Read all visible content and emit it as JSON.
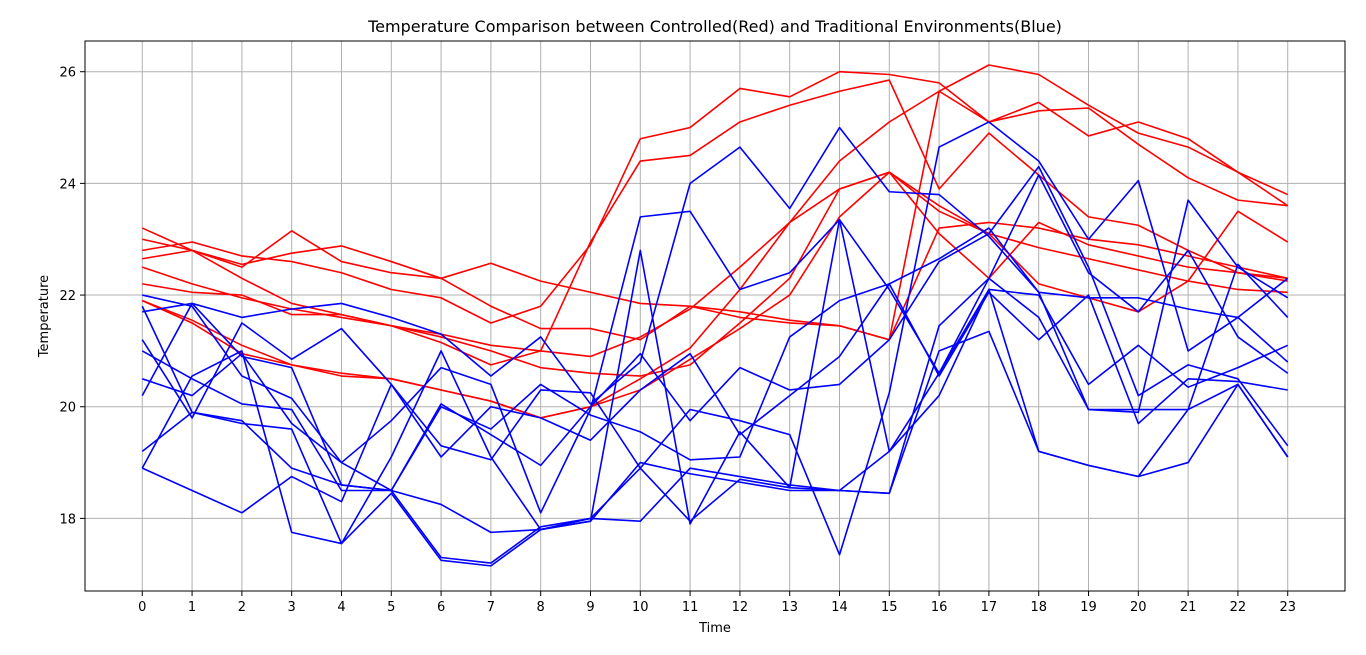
{
  "chart_data": {
    "type": "line",
    "title": "Temperature Comparison between Controlled(Red) and Traditional Environments(Blue)",
    "xlabel": "Time",
    "ylabel": "Temperature",
    "x": [
      0,
      1,
      2,
      3,
      4,
      5,
      6,
      7,
      8,
      9,
      10,
      11,
      12,
      13,
      14,
      15,
      16,
      17,
      18,
      19,
      20,
      21,
      22,
      23
    ],
    "xlim": [
      -1.15,
      24.15
    ],
    "ylim": [
      16.7,
      26.55
    ],
    "yticks": [
      18,
      20,
      22,
      24,
      26
    ],
    "grid": true,
    "colors": {
      "controlled": "#ff0000",
      "traditional": "#0000ff",
      "grid": "#b0b0b0"
    },
    "series": [
      {
        "group": "controlled",
        "values": [
          23.2,
          22.8,
          22.5,
          23.15,
          22.6,
          22.4,
          22.3,
          21.8,
          21.4,
          21.4,
          21.2,
          21.8,
          21.6,
          21.5,
          21.45,
          21.2,
          23.2,
          23.3,
          23.2,
          23.0,
          22.9,
          22.7,
          22.5,
          22.3
        ]
      },
      {
        "group": "controlled",
        "values": [
          22.65,
          22.8,
          22.55,
          22.75,
          22.88,
          22.6,
          22.3,
          22.57,
          22.25,
          22.05,
          21.85,
          21.8,
          21.7,
          21.55,
          21.45,
          21.2,
          25.65,
          25.1,
          25.3,
          25.35,
          24.7,
          24.1,
          23.7,
          23.6
        ]
      },
      {
        "group": "controlled",
        "values": [
          22.8,
          22.95,
          22.7,
          22.6,
          22.4,
          22.1,
          21.95,
          21.5,
          21.8,
          22.9,
          24.8,
          25.0,
          25.7,
          25.55,
          26.0,
          25.95,
          25.8,
          25.1,
          25.45,
          24.85,
          25.1,
          24.8,
          24.2,
          23.8
        ]
      },
      {
        "group": "controlled",
        "values": [
          23.0,
          22.8,
          22.3,
          21.85,
          21.65,
          21.45,
          21.3,
          21.1,
          21.0,
          20.9,
          21.25,
          21.75,
          22.5,
          23.3,
          24.4,
          25.1,
          25.65,
          26.12,
          25.95,
          25.4,
          24.9,
          24.65,
          24.2,
          23.6
        ]
      },
      {
        "group": "controlled",
        "values": [
          22.5,
          22.2,
          21.95,
          21.75,
          21.6,
          21.45,
          21.25,
          21.0,
          20.7,
          20.6,
          20.55,
          20.75,
          21.5,
          22.3,
          23.9,
          24.2,
          23.5,
          23.1,
          22.85,
          22.65,
          22.45,
          22.25,
          22.1,
          22.05
        ]
      },
      {
        "group": "controlled",
        "values": [
          22.2,
          22.05,
          22.0,
          21.65,
          21.65,
          21.45,
          21.15,
          20.75,
          21.0,
          22.95,
          24.4,
          24.5,
          25.1,
          25.4,
          25.65,
          25.85,
          23.9,
          24.9,
          24.15,
          23.4,
          23.25,
          22.8,
          22.4,
          22.3
        ]
      },
      {
        "group": "controlled",
        "values": [
          21.9,
          21.55,
          21.1,
          20.75,
          20.6,
          20.5,
          20.3,
          20.1,
          19.8,
          20.0,
          20.3,
          20.85,
          21.4,
          22.0,
          23.4,
          24.2,
          23.1,
          22.3,
          23.3,
          22.9,
          22.7,
          22.5,
          22.4,
          22.25
        ]
      },
      {
        "group": "controlled",
        "values": [
          21.9,
          21.5,
          20.95,
          20.75,
          20.55,
          20.5,
          20.3,
          20.1,
          19.8,
          20.0,
          20.5,
          21.05,
          22.1,
          23.3,
          23.9,
          24.2,
          23.6,
          23.1,
          22.2,
          21.95,
          21.7,
          22.25,
          23.5,
          22.95
        ]
      },
      {
        "group": "traditional",
        "values": [
          21.7,
          21.85,
          21.6,
          21.75,
          21.85,
          21.6,
          21.3,
          20.55,
          21.25,
          20.05,
          20.8,
          24.0,
          24.65,
          23.55,
          25.0,
          23.85,
          23.8,
          23.05,
          22.05,
          21.95,
          21.95,
          21.75,
          21.6,
          20.8
        ]
      },
      {
        "group": "traditional",
        "values": [
          22.0,
          21.8,
          20.55,
          20.15,
          19.0,
          19.75,
          20.7,
          20.4,
          18.1,
          19.95,
          23.4,
          23.5,
          22.1,
          22.4,
          23.35,
          22.1,
          20.6,
          22.3,
          24.15,
          22.4,
          21.7,
          22.8,
          21.25,
          20.6
        ]
      },
      {
        "group": "traditional",
        "values": [
          20.2,
          21.85,
          20.9,
          20.7,
          18.6,
          18.5,
          20.05,
          19.5,
          18.95,
          20.0,
          20.95,
          19.75,
          20.7,
          20.3,
          20.4,
          21.2,
          22.6,
          23.1,
          24.3,
          22.5,
          20.2,
          20.75,
          20.5,
          19.3
        ]
      },
      {
        "group": "traditional",
        "values": [
          21.2,
          19.8,
          21.5,
          20.85,
          21.4,
          20.4,
          19.1,
          20.0,
          19.8,
          19.4,
          20.3,
          20.95,
          19.5,
          20.2,
          20.9,
          22.2,
          20.55,
          22.05,
          21.2,
          22.0,
          19.7,
          20.5,
          20.45,
          20.3
        ]
      },
      {
        "group": "traditional",
        "values": [
          20.5,
          20.2,
          20.95,
          19.7,
          19.0,
          18.5,
          20.0,
          19.6,
          20.4,
          19.85,
          19.55,
          19.05,
          19.1,
          21.25,
          21.9,
          22.2,
          22.65,
          23.2,
          22.05,
          19.95,
          19.9,
          23.7,
          22.5,
          21.95
        ]
      },
      {
        "group": "traditional",
        "values": [
          19.2,
          19.9,
          19.7,
          19.6,
          17.55,
          19.1,
          21.0,
          19.1,
          17.8,
          18.0,
          17.95,
          18.9,
          18.75,
          18.6,
          18.5,
          18.45,
          21.0,
          21.35,
          19.2,
          18.95,
          18.75,
          19.0,
          20.4,
          19.1
        ]
      },
      {
        "group": "traditional",
        "values": [
          18.9,
          20.55,
          21.0,
          17.75,
          17.55,
          18.45,
          17.25,
          17.15,
          17.8,
          17.95,
          22.8,
          17.9,
          19.55,
          18.55,
          23.35,
          19.2,
          20.2,
          22.1,
          22.0,
          20.4,
          21.1,
          20.35,
          20.7,
          21.1
        ]
      },
      {
        "group": "traditional",
        "values": [
          18.9,
          18.5,
          18.1,
          18.75,
          18.3,
          20.4,
          19.3,
          19.05,
          20.3,
          20.25,
          18.9,
          19.95,
          19.75,
          19.5,
          17.35,
          20.25,
          24.65,
          25.1,
          24.4,
          23.0,
          24.05,
          21.0,
          21.6,
          22.3
        ]
      },
      {
        "group": "traditional",
        "values": [
          21.0,
          20.5,
          20.05,
          19.95,
          18.5,
          18.5,
          18.25,
          17.75,
          17.8,
          17.95,
          19.0,
          18.8,
          18.65,
          18.5,
          18.5,
          18.45,
          21.45,
          22.3,
          21.6,
          19.95,
          19.95,
          19.95,
          22.55,
          21.6
        ]
      },
      {
        "group": "traditional",
        "values": [
          21.8,
          19.9,
          19.75,
          18.9,
          18.6,
          18.5,
          17.3,
          17.2,
          17.85,
          18.0,
          18.9,
          17.95,
          18.7,
          18.55,
          18.5,
          19.2,
          20.6,
          22.1,
          19.2,
          18.95,
          18.75,
          19.95,
          20.4,
          19.1
        ]
      }
    ]
  }
}
